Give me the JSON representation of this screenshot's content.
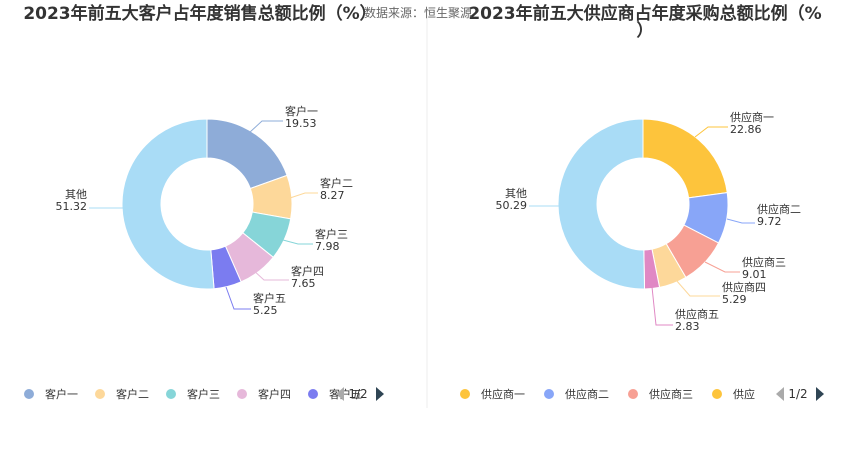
{
  "source_text": "数据来源：恒生聚源",
  "colors": {
    "divider": "#eeeeee",
    "arrow_active": "#2f4554",
    "arrow_inactive": "#aaaaaa",
    "leader_default": "#bbbbbb"
  },
  "chart_data": [
    {
      "type": "pie",
      "title_lines": [
        "2023年前五大客户占年度销售总额比例（%）"
      ],
      "slices": [
        {
          "name": "客户一",
          "value": 19.53,
          "color": "#8eacd8"
        },
        {
          "name": "客户二",
          "value": 8.27,
          "color": "#fdd89a"
        },
        {
          "name": "客户三",
          "value": 7.98,
          "color": "#86d5d8"
        },
        {
          "name": "客户四",
          "value": 7.65,
          "color": "#e6b8da"
        },
        {
          "name": "客户五",
          "value": 5.25,
          "color": "#7b7cf0"
        },
        {
          "name": "其他",
          "value": 51.32,
          "color": "#a9dcf6"
        }
      ],
      "legend": {
        "placement": "bottom",
        "visible_items": [
          "客户一",
          "客户二",
          "客户三",
          "客户四",
          "客户五"
        ],
        "page_label": "1/2"
      }
    },
    {
      "type": "pie",
      "title_lines": [
        "2023年前五大供应商占年度采购总额比例（%",
        "）"
      ],
      "slices": [
        {
          "name": "供应商一",
          "value": 22.86,
          "color": "#fdc43c"
        },
        {
          "name": "供应商二",
          "value": 9.72,
          "color": "#88a6f8"
        },
        {
          "name": "供应商三",
          "value": 9.01,
          "color": "#f7a094"
        },
        {
          "name": "供应商四",
          "value": 5.29,
          "color": "#fdd89a"
        },
        {
          "name": "供应商五",
          "value": 2.83,
          "color": "#e088c4"
        },
        {
          "name": "其他",
          "value": 50.29,
          "color": "#a9dcf6"
        }
      ],
      "legend": {
        "placement": "bottom",
        "visible_items": [
          "供应商一",
          "供应商二",
          "供应商三",
          "供应"
        ],
        "page_label": "1/2"
      }
    }
  ]
}
